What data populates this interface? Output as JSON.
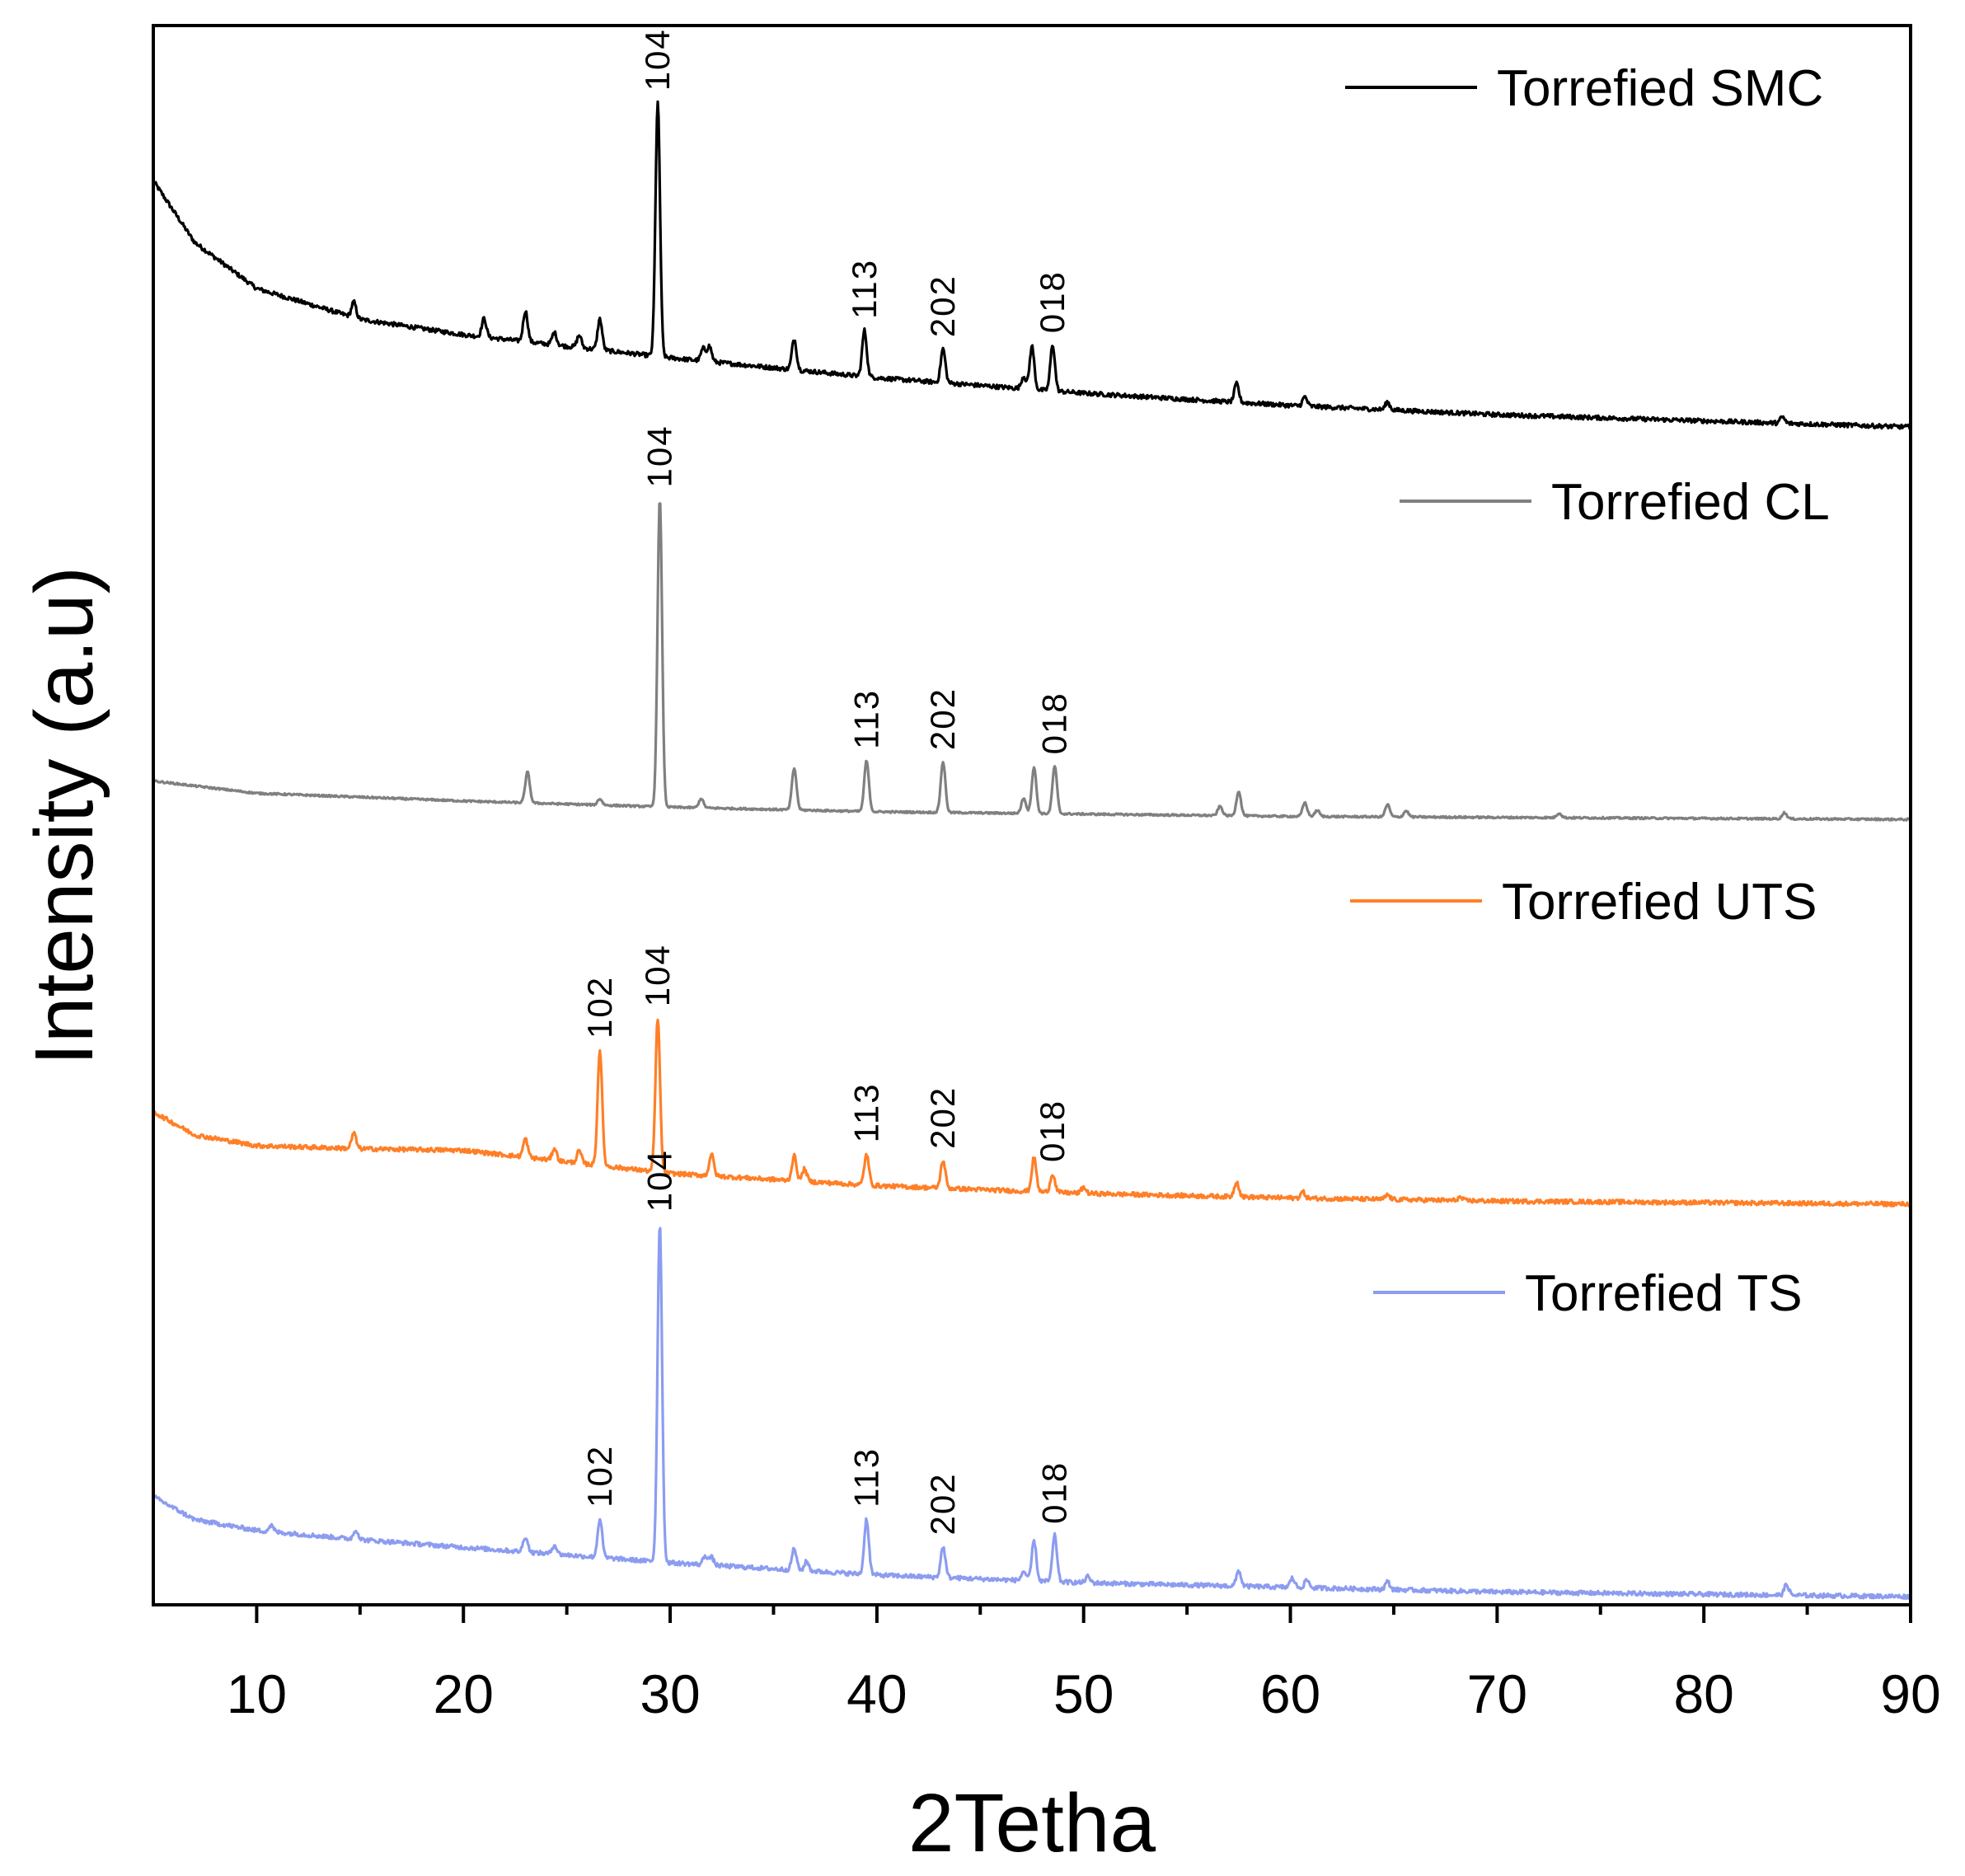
{
  "chart_data": {
    "type": "line",
    "title": "",
    "xlabel": "2Tetha",
    "ylabel": "Intensity (a.u)",
    "xlim": [
      5,
      90
    ],
    "xticks": [
      10,
      20,
      30,
      40,
      50,
      60,
      70,
      80,
      90
    ],
    "ylim": [
      0,
      1
    ],
    "y_ticks_shown": false,
    "legend_placement": "right, one entry per trace",
    "series": [
      {
        "name": "Torrefied SMC",
        "color": "#000000",
        "offset": 0.76,
        "baseline": [
          [
            5,
            0.16
          ],
          [
            7,
            0.12
          ],
          [
            10,
            0.09
          ],
          [
            15,
            0.07
          ],
          [
            20,
            0.06
          ],
          [
            30,
            0.045
          ],
          [
            40,
            0.032
          ],
          [
            50,
            0.022
          ],
          [
            60,
            0.014
          ],
          [
            70,
            0.008
          ],
          [
            80,
            0.004
          ],
          [
            90,
            0.0
          ]
        ],
        "peaks": [
          [
            14.7,
            0.01
          ],
          [
            21,
            0.012
          ],
          [
            23,
            0.02
          ],
          [
            24.4,
            0.008
          ],
          [
            25.6,
            0.008
          ],
          [
            26.6,
            0.02
          ],
          [
            29.4,
            0.165
          ],
          [
            31.6,
            0.008
          ],
          [
            31.9,
            0.01
          ],
          [
            36,
            0.02
          ],
          [
            39.4,
            0.03
          ],
          [
            43.2,
            0.022
          ],
          [
            47.1,
            0.008
          ],
          [
            47.5,
            0.028
          ],
          [
            48.5,
            0.03
          ],
          [
            57.4,
            0.012
          ],
          [
            60.7,
            0.006
          ],
          [
            64.7,
            0.005
          ],
          [
            83.8,
            0.004
          ]
        ],
        "peak_labels": [
          {
            "x": 29.4,
            "text": "104"
          },
          {
            "x": 39.4,
            "text": "113"
          },
          {
            "x": 43.2,
            "text": "202"
          },
          {
            "x": 48.5,
            "text": "018"
          }
        ]
      },
      {
        "name": "Torrefied CL",
        "color": "#808080",
        "offset": 0.505,
        "baseline": [
          [
            5,
            0.025
          ],
          [
            10,
            0.017
          ],
          [
            20,
            0.012
          ],
          [
            30,
            0.008
          ],
          [
            40,
            0.005
          ],
          [
            60,
            0.002
          ],
          [
            90,
            0.0
          ]
        ],
        "peaks": [
          [
            23.1,
            0.02
          ],
          [
            26.6,
            0.004
          ],
          [
            29.5,
            0.2
          ],
          [
            31.5,
            0.006
          ],
          [
            36,
            0.027
          ],
          [
            39.5,
            0.033
          ],
          [
            43.2,
            0.033
          ],
          [
            47.1,
            0.01
          ],
          [
            47.6,
            0.03
          ],
          [
            48.6,
            0.031
          ],
          [
            56.6,
            0.006
          ],
          [
            57.5,
            0.016
          ],
          [
            60.7,
            0.009
          ],
          [
            61.3,
            0.004
          ],
          [
            64.7,
            0.008
          ],
          [
            65.6,
            0.004
          ],
          [
            73,
            0.003
          ],
          [
            83.9,
            0.004
          ]
        ],
        "peak_labels": [
          {
            "x": 29.5,
            "text": "104"
          },
          {
            "x": 39.5,
            "text": "113"
          },
          {
            "x": 43.2,
            "text": "202"
          },
          {
            "x": 48.6,
            "text": "018"
          }
        ]
      },
      {
        "name": "Torrefied UTS",
        "color": "#ff7f27",
        "offset": 0.255,
        "baseline": [
          [
            5,
            0.06
          ],
          [
            7,
            0.045
          ],
          [
            10,
            0.038
          ],
          [
            15,
            0.036
          ],
          [
            20,
            0.035
          ],
          [
            30,
            0.02
          ],
          [
            40,
            0.012
          ],
          [
            50,
            0.007
          ],
          [
            60,
            0.004
          ],
          [
            70,
            0.002
          ],
          [
            90,
            0.0
          ]
        ],
        "peaks": [
          [
            14.7,
            0.01
          ],
          [
            23,
            0.012
          ],
          [
            24.4,
            0.008
          ],
          [
            25.6,
            0.008
          ],
          [
            26.6,
            0.075
          ],
          [
            29.4,
            0.1
          ],
          [
            32,
            0.014
          ],
          [
            36,
            0.016
          ],
          [
            36.5,
            0.008
          ],
          [
            39.5,
            0.02
          ],
          [
            43.2,
            0.018
          ],
          [
            47.6,
            0.022
          ],
          [
            48.5,
            0.012
          ],
          [
            50,
            0.004
          ],
          [
            57.4,
            0.01
          ],
          [
            60.6,
            0.004
          ],
          [
            64.7,
            0.003
          ],
          [
            68.2,
            0.002
          ]
        ],
        "peak_labels": [
          {
            "x": 26.6,
            "text": "102"
          },
          {
            "x": 29.4,
            "text": "104"
          },
          {
            "x": 39.5,
            "text": "113"
          },
          {
            "x": 43.2,
            "text": "202"
          },
          {
            "x": 48.5,
            "text": "018"
          }
        ]
      },
      {
        "name": "Torrefied TS",
        "color": "#8c9cf0",
        "offset": 0.0,
        "baseline": [
          [
            5,
            0.065
          ],
          [
            7,
            0.05
          ],
          [
            10,
            0.043
          ],
          [
            15,
            0.037
          ],
          [
            20,
            0.032
          ],
          [
            30,
            0.022
          ],
          [
            40,
            0.014
          ],
          [
            50,
            0.009
          ],
          [
            60,
            0.006
          ],
          [
            70,
            0.003
          ],
          [
            90,
            0.0
          ]
        ],
        "peaks": [
          [
            10.7,
            0.004
          ],
          [
            14.8,
            0.006
          ],
          [
            23,
            0.01
          ],
          [
            24.4,
            0.006
          ],
          [
            26.6,
            0.025
          ],
          [
            29.5,
            0.22
          ],
          [
            31.7,
            0.006
          ],
          [
            32,
            0.005
          ],
          [
            36,
            0.014
          ],
          [
            36.6,
            0.006
          ],
          [
            39.5,
            0.036
          ],
          [
            43.2,
            0.02
          ],
          [
            47.1,
            0.006
          ],
          [
            47.6,
            0.026
          ],
          [
            48.6,
            0.03
          ],
          [
            50.2,
            0.004
          ],
          [
            57.5,
            0.01
          ],
          [
            60.1,
            0.006
          ],
          [
            60.8,
            0.005
          ],
          [
            64.7,
            0.005
          ],
          [
            84,
            0.007
          ]
        ],
        "peak_labels": [
          {
            "x": 26.6,
            "text": "102"
          },
          {
            "x": 29.5,
            "text": "104"
          },
          {
            "x": 39.5,
            "text": "113"
          },
          {
            "x": 43.2,
            "text": "202"
          },
          {
            "x": 48.6,
            "text": "018"
          }
        ]
      }
    ]
  }
}
